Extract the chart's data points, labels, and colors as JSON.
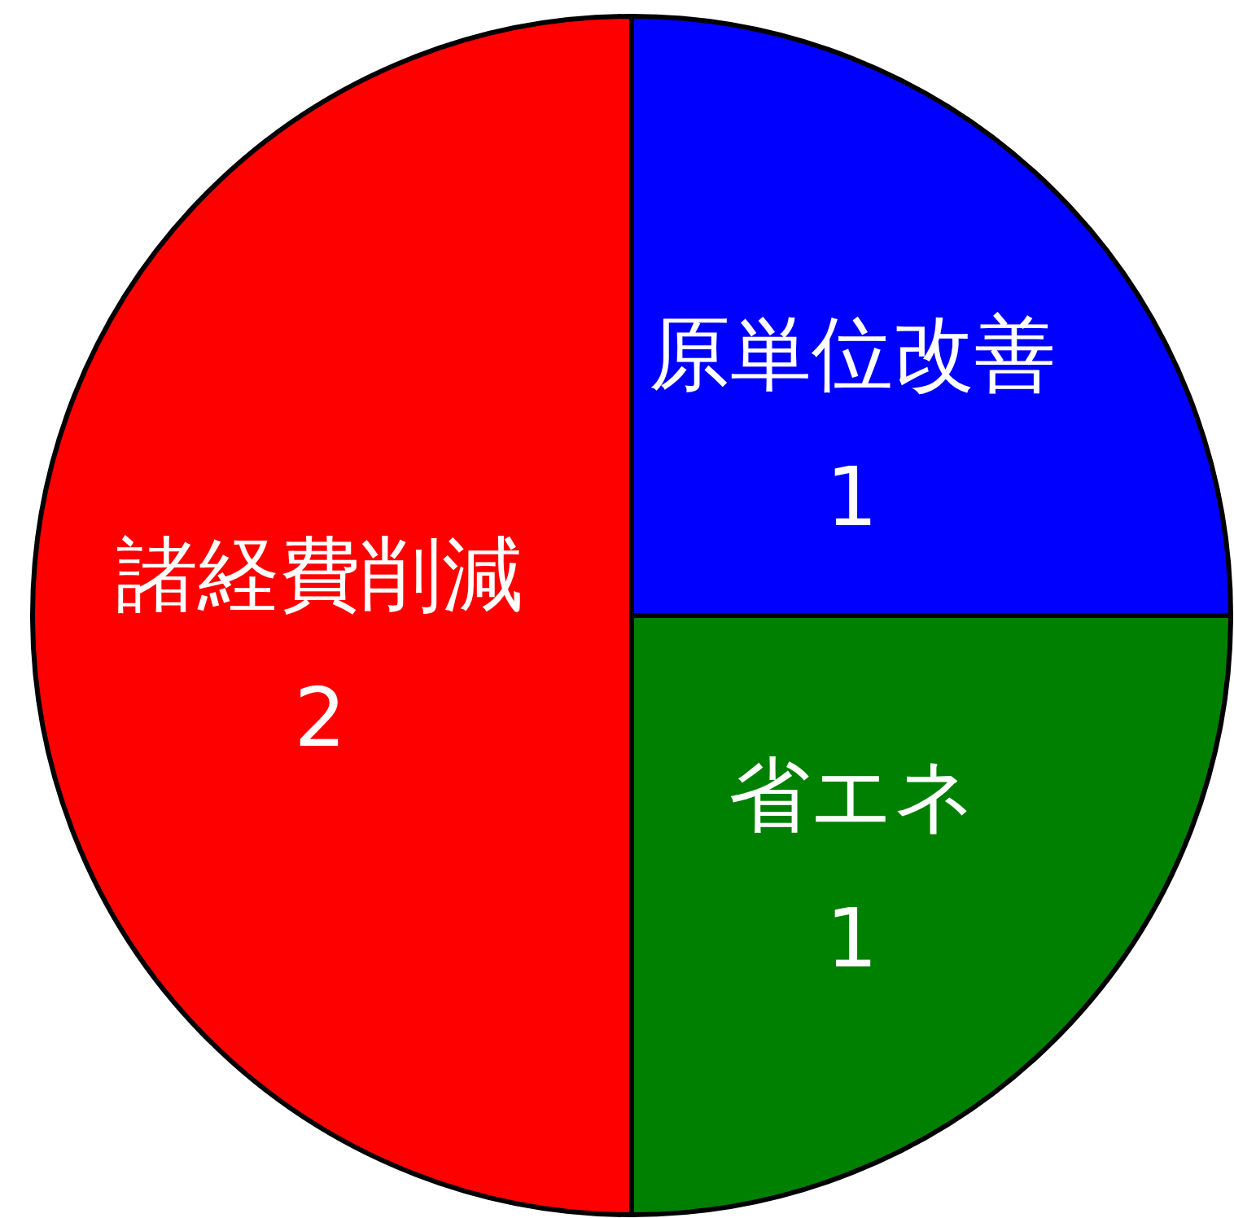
{
  "chart_data": {
    "type": "pie",
    "categories": [
      "原単位改善",
      "省エネ",
      "諸経費削減"
    ],
    "values": [
      1,
      1,
      2
    ],
    "colors": [
      "#0000ff",
      "#008000",
      "#ff0000"
    ],
    "data_labels": true
  }
}
